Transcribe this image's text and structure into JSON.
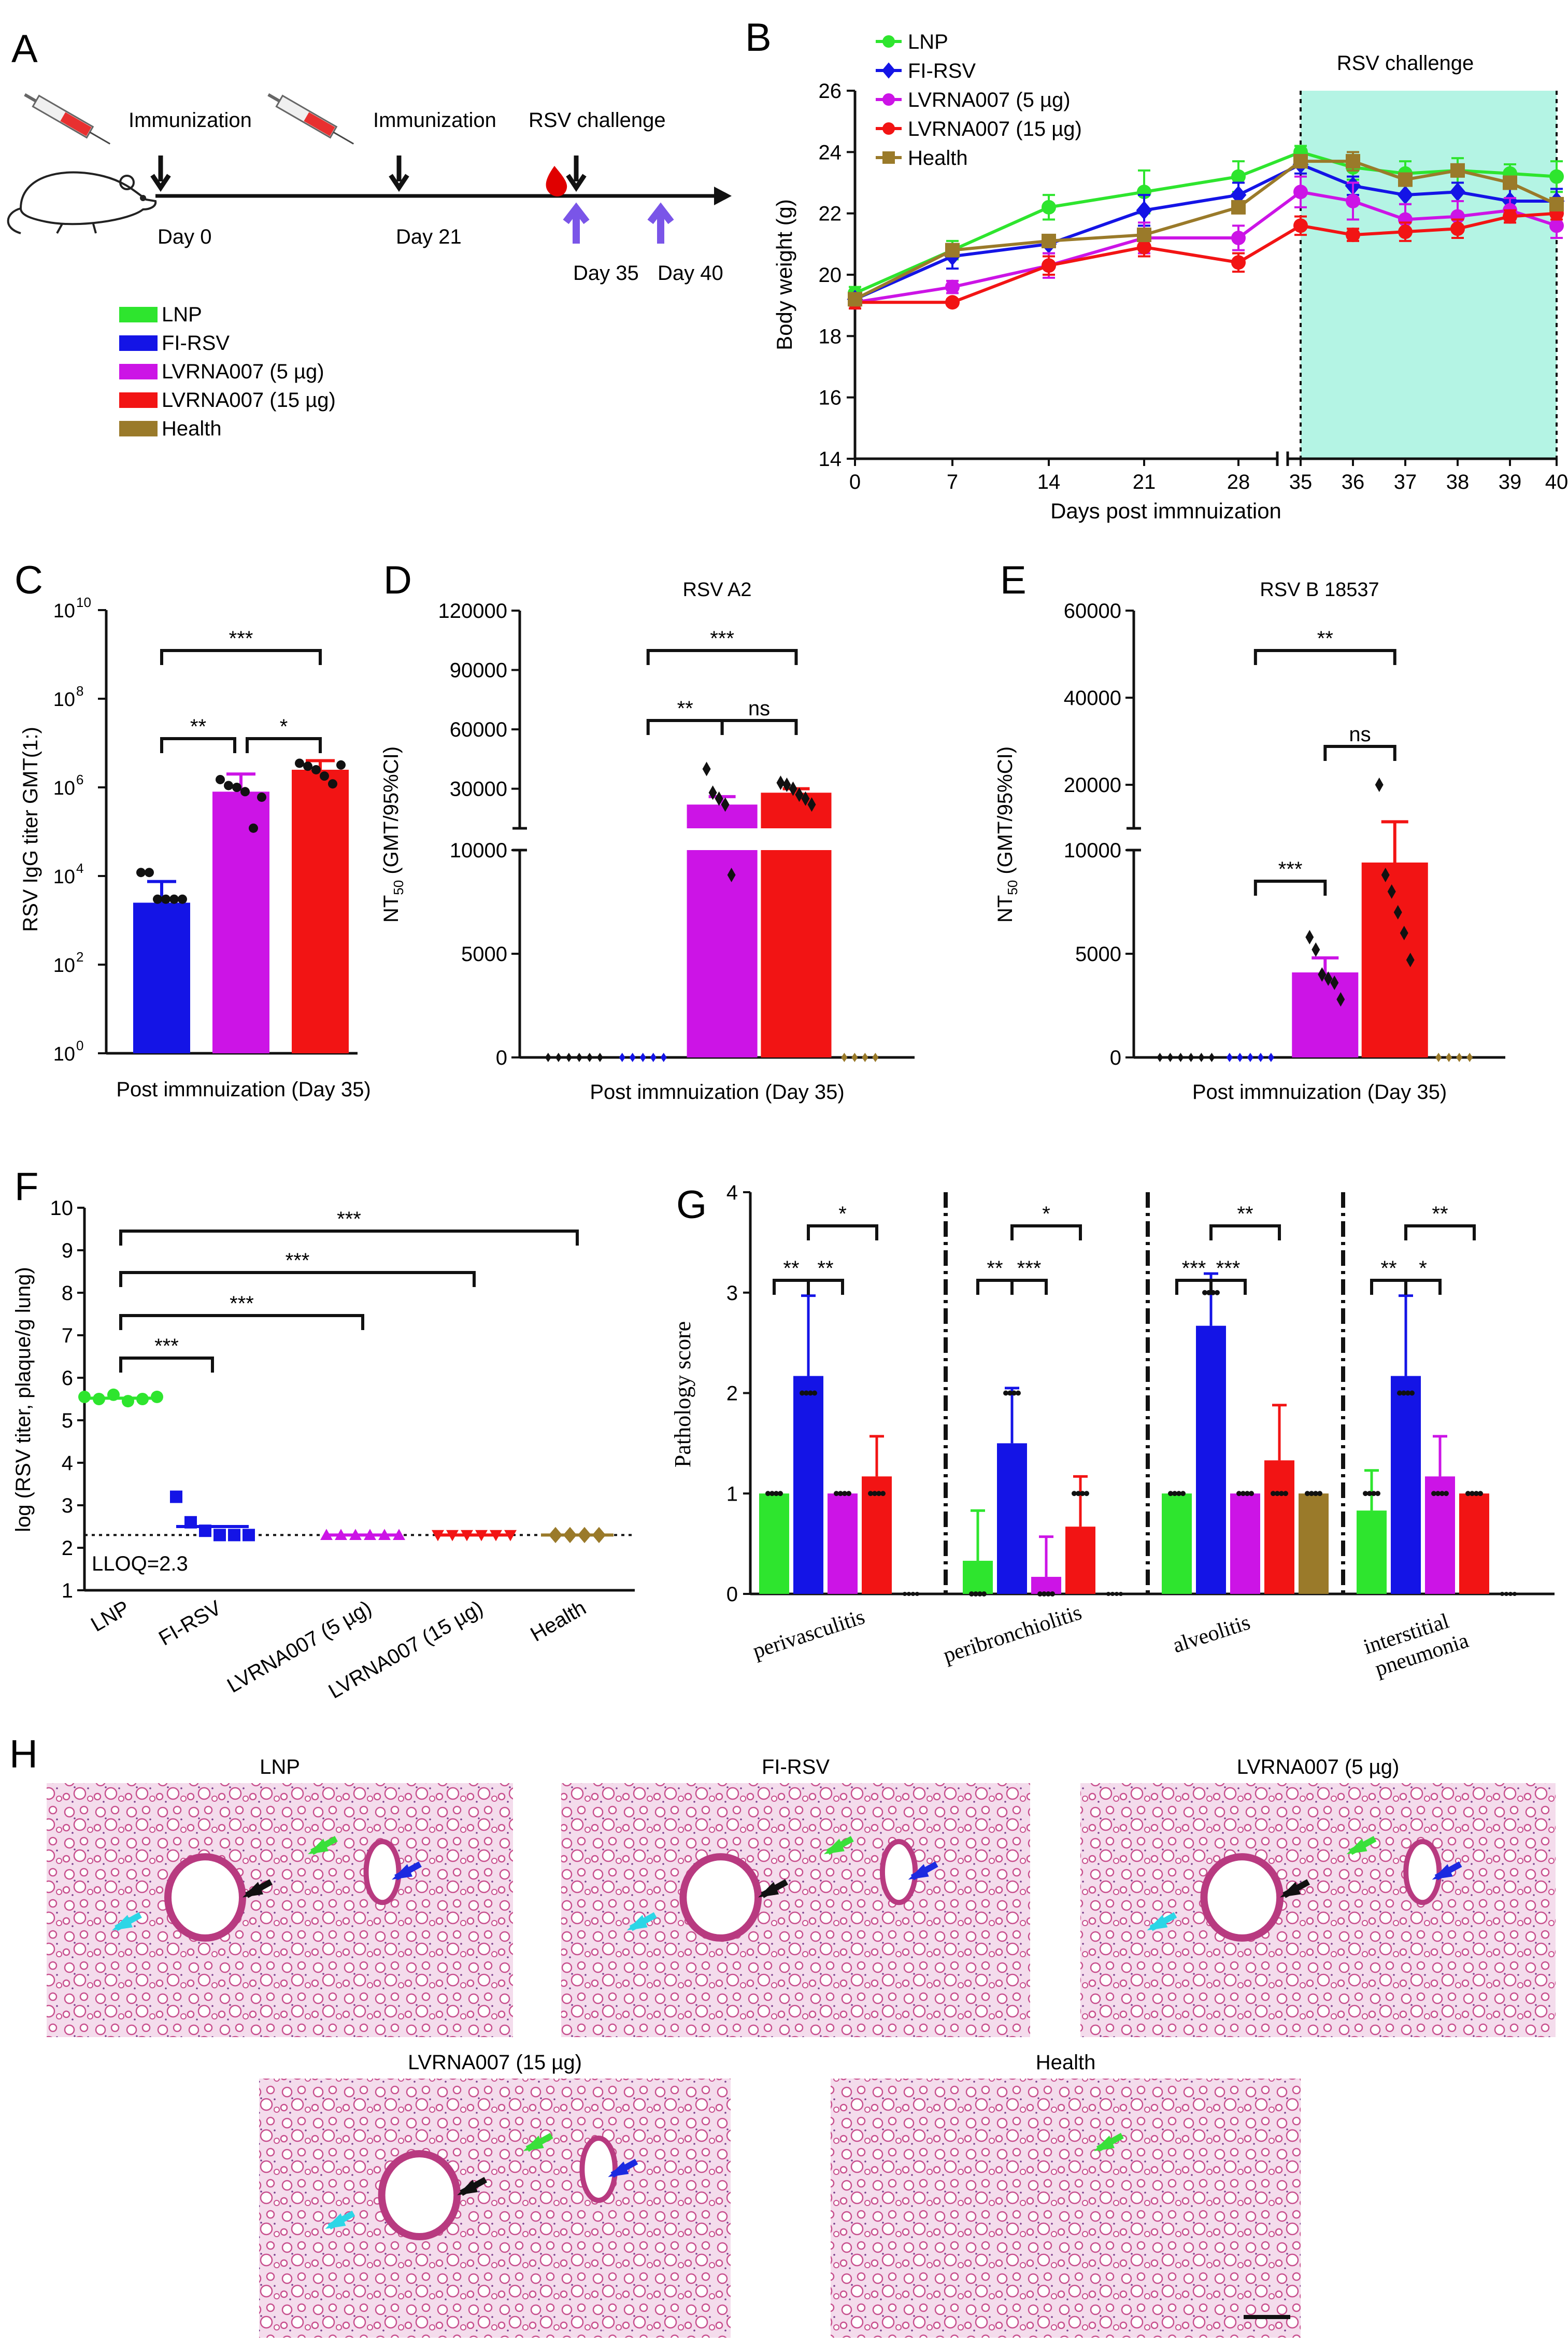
{
  "colors": {
    "LNP": "#2ee52e",
    "FI-RSV": "#1414e6",
    "LVRNA007 (5 µg)": "#cc14e6",
    "LVRNA007 (15 µg)": "#f21414",
    "Health": "#9a7a2a",
    "challenge_band": "#b4f4e4",
    "arrow_black": "#111111",
    "arrow_cyan": "#2cd6e6",
    "arrow_green": "#3ae03a",
    "arrow_blue": "#1c2ae0",
    "timeline_sample_arrow": "#7a55e8",
    "tissue_bg": "#f4dcec",
    "tissue_stain": "#c8508e"
  },
  "panel_letters": {
    "A": "A",
    "B": "B",
    "C": "C",
    "D": "D",
    "E": "E",
    "F": "F",
    "G": "G",
    "H": "H"
  },
  "panel_a": {
    "events": [
      {
        "label": "Immunization",
        "day": "Day 0",
        "icon": "syringe-icon"
      },
      {
        "label": "Immunization",
        "day": "Day 21",
        "icon": "syringe-icon"
      },
      {
        "label": "RSV challenge",
        "day": "Day 35",
        "icon": "blood-drop-icon"
      },
      {
        "label": "",
        "day": "Day 40",
        "icon": ""
      }
    ],
    "legend": [
      "LNP",
      "FI-RSV",
      "LVRNA007 (5 µg)",
      "LVRNA007 (15 µg)",
      "Health"
    ]
  },
  "chart_data": [
    {
      "panel": "B",
      "type": "line",
      "xlabel": "Days post immnuization",
      "ylabel": "Body weight (g)",
      "ylim": [
        14,
        26
      ],
      "yticks": [
        14,
        16,
        18,
        20,
        22,
        24,
        26
      ],
      "x": [
        0,
        7,
        14,
        21,
        28,
        35,
        36,
        37,
        38,
        39,
        40
      ],
      "x_tick_labels": [
        "0",
        "7",
        "14",
        "21",
        "28",
        "35",
        "36",
        "37",
        "38",
        "39",
        "40"
      ],
      "axis_break_between": [
        28,
        35
      ],
      "shaded_region": {
        "from": 35,
        "to": 40,
        "label": "RSV challenge"
      },
      "legend_placement": "top-left",
      "series": [
        {
          "name": "LNP",
          "marker": "circle",
          "values": [
            19.4,
            20.8,
            22.2,
            22.7,
            23.2,
            24.0,
            23.5,
            23.3,
            23.4,
            23.3,
            23.2
          ],
          "errors": [
            0.2,
            0.3,
            0.4,
            0.7,
            0.5,
            0.2,
            0.4,
            0.4,
            0.4,
            0.3,
            0.5
          ]
        },
        {
          "name": "FI-RSV",
          "marker": "diamond",
          "values": [
            19.2,
            20.6,
            21.0,
            22.1,
            22.6,
            23.6,
            22.9,
            22.6,
            22.7,
            22.4,
            22.4
          ],
          "errors": [
            0.2,
            0.4,
            0.3,
            0.5,
            0.4,
            0.3,
            0.3,
            0.3,
            0.3,
            0.4,
            0.4
          ]
        },
        {
          "name": "LVRNA007 (5 µg)",
          "marker": "circle",
          "values": [
            19.1,
            19.6,
            20.3,
            21.2,
            21.2,
            22.7,
            22.4,
            21.8,
            21.9,
            22.1,
            21.6
          ],
          "errors": [
            0.2,
            0.2,
            0.4,
            0.5,
            0.4,
            0.5,
            0.6,
            0.5,
            0.5,
            0.4,
            0.4
          ]
        },
        {
          "name": "LVRNA007 (15 µg)",
          "marker": "circle",
          "values": [
            19.1,
            19.1,
            20.3,
            20.9,
            20.4,
            21.6,
            21.3,
            21.4,
            21.5,
            21.9,
            22.0
          ],
          "errors": [
            0.2,
            0.1,
            0.3,
            0.3,
            0.3,
            0.3,
            0.2,
            0.3,
            0.3,
            0.2,
            0.2
          ]
        },
        {
          "name": "Health",
          "marker": "square",
          "values": [
            19.2,
            20.8,
            21.1,
            21.3,
            22.2,
            23.7,
            23.7,
            23.1,
            23.4,
            23.0,
            22.3
          ],
          "errors": [
            0.2,
            0.2,
            0.2,
            0.2,
            0.2,
            0.2,
            0.3,
            0.2,
            0.2,
            0.2,
            0.2
          ]
        }
      ]
    },
    {
      "panel": "C",
      "type": "bar",
      "xlabel": "Post immnuization (Day 35)",
      "ylabel": "RSV IgG titer GMT(1:)",
      "yscale": "log",
      "ylim": [
        1,
        10000000000
      ],
      "yticks": [
        "10",
        "10",
        "10",
        "10",
        "10",
        "10"
      ],
      "ytick_exponents": [
        "0",
        "2",
        "4",
        "6",
        "8",
        "10"
      ],
      "categories": [
        "FI-RSV",
        "LVRNA007 (5 µg)",
        "LVRNA007 (15 µg)"
      ],
      "values": [
        2500,
        800000,
        2500000
      ],
      "errors_upper": [
        7500,
        2000000,
        4000000
      ],
      "points": [
        [
          12000,
          12000,
          3000,
          3000,
          3000,
          3000
        ],
        [
          1500000,
          1100000,
          1000000,
          800000,
          120000,
          600000
        ],
        [
          3500000,
          3000000,
          2500000,
          1800000,
          1200000,
          3200000
        ]
      ],
      "significance": [
        {
          "from": 0,
          "to": 2,
          "label": "***"
        },
        {
          "from": 0,
          "to": 1,
          "label": "**"
        },
        {
          "from": 1,
          "to": 2,
          "label": "*"
        }
      ]
    },
    {
      "panel": "D",
      "type": "bar",
      "title": "RSV A2",
      "xlabel": "Post immnuization (Day 35)",
      "ylabel": "NT50 (GMT/95%CI)",
      "ylabel_main": "NT",
      "ylabel_sub": "50",
      "ylabel_rest": " (GMT/95%CI)",
      "broken_axis": {
        "lower": [
          0,
          10000
        ],
        "upper": [
          10000,
          120000
        ]
      },
      "yticks": [
        "0",
        "5000",
        "10000",
        "30000",
        "60000",
        "90000",
        "120000"
      ],
      "categories": [
        "LNP",
        "FI-RSV",
        "LVRNA007 (5 µg)",
        "LVRNA007 (15 µg)",
        "Health"
      ],
      "values": [
        0,
        0,
        22000,
        28000,
        0
      ],
      "errors_upper": [
        0,
        0,
        26000,
        30000,
        0
      ],
      "points": [
        [
          0,
          0,
          0,
          0,
          0,
          0
        ],
        [
          0,
          0,
          0,
          0,
          0
        ],
        [
          40000,
          28000,
          25000,
          22000,
          8800
        ],
        [
          33000,
          32000,
          30000,
          27000,
          25000,
          22000
        ],
        [
          0,
          0,
          0,
          0
        ]
      ],
      "significance": [
        {
          "from": 1,
          "to": 3,
          "label": "***"
        },
        {
          "from": 1,
          "to": 2,
          "label": "**"
        },
        {
          "from": 2,
          "to": 3,
          "label": "ns"
        }
      ]
    },
    {
      "panel": "E",
      "type": "bar",
      "title": "RSV B 18537",
      "xlabel": "Post immnuization (Day 35)",
      "ylabel": "NT50 (GMT/95%CI)",
      "ylabel_main": "NT",
      "ylabel_sub": "50",
      "ylabel_rest": " (GMT/95%CI)",
      "broken_axis": {
        "lower": [
          0,
          10000
        ],
        "upper": [
          10000,
          60000
        ]
      },
      "yticks": [
        "0",
        "5000",
        "10000",
        "20000",
        "40000",
        "60000"
      ],
      "categories": [
        "LNP",
        "FI-RSV",
        "LVRNA007 (5 µg)",
        "LVRNA007 (15 µg)",
        "Health"
      ],
      "values": [
        0,
        0,
        4100,
        9400,
        0
      ],
      "errors_upper": [
        0,
        0,
        4800,
        11500,
        0
      ],
      "points": [
        [
          0,
          0,
          0,
          0,
          0,
          0
        ],
        [
          0,
          0,
          0,
          0,
          0
        ],
        [
          5800,
          5200,
          4000,
          3800,
          3600,
          2800
        ],
        [
          20000,
          8800,
          8000,
          7000,
          6000,
          4700
        ],
        [
          0,
          0,
          0,
          0
        ]
      ],
      "significance": [
        {
          "from": 1,
          "to": 3,
          "label": "**"
        },
        {
          "from": 2,
          "to": 3,
          "label": "ns"
        },
        {
          "from": 1,
          "to": 2,
          "label": "***"
        }
      ]
    },
    {
      "panel": "F",
      "type": "scatter",
      "ylabel": "log (RSV titer, plaque/g lung)",
      "ylim": [
        1,
        10
      ],
      "yticks": [
        "1",
        "2",
        "3",
        "4",
        "5",
        "6",
        "7",
        "8",
        "9",
        "10"
      ],
      "categories": [
        "LNP",
        "FI-RSV",
        "LVRNA007 (5 µg)",
        "LVRNA007 (15 µg)",
        "Health"
      ],
      "markers": [
        "circle",
        "square",
        "triangle-up",
        "triangle-down",
        "diamond"
      ],
      "points": [
        [
          5.55,
          5.5,
          5.6,
          5.45,
          5.5,
          5.55
        ],
        [
          3.2,
          2.6,
          2.4,
          2.3,
          2.3,
          2.3
        ],
        [
          2.3,
          2.3,
          2.3,
          2.3,
          2.3,
          2.3
        ],
        [
          2.3,
          2.3,
          2.3,
          2.3,
          2.3,
          2.3
        ],
        [
          2.3,
          2.3,
          2.3,
          2.3
        ]
      ],
      "means": [
        5.52,
        2.5,
        2.3,
        2.3,
        2.3
      ],
      "errors": [
        0.05,
        0.15,
        0.0,
        0.0,
        0.0
      ],
      "lloq": {
        "value": 2.3,
        "label": "LLOQ=2.3"
      },
      "significance": [
        {
          "from": 0,
          "to": 4,
          "label": "***"
        },
        {
          "from": 0,
          "to": 3,
          "label": "***"
        },
        {
          "from": 0,
          "to": 2,
          "label": "***"
        },
        {
          "from": 0,
          "to": 1,
          "label": "***"
        }
      ]
    },
    {
      "panel": "G",
      "type": "bar",
      "ylabel": "Pathology score",
      "ylim": [
        0,
        4
      ],
      "yticks": [
        "0",
        "1",
        "2",
        "3",
        "4"
      ],
      "groups": [
        "perivasculitis",
        "peribronchiolitis",
        "alveolitis",
        "interstitial\npneumonia"
      ],
      "group_labels": [
        [
          "perivasculitis"
        ],
        [
          "peribronchiolitis"
        ],
        [
          "alveolitis"
        ],
        [
          "interstitial",
          "pneumonia"
        ]
      ],
      "series_order": [
        "LNP",
        "FI-RSV",
        "LVRNA007 (5 µg)",
        "LVRNA007 (15 µg)",
        "Health"
      ],
      "values": [
        [
          1.0,
          2.17,
          1.0,
          1.17,
          0.0
        ],
        [
          0.33,
          1.5,
          0.17,
          0.67,
          0.0
        ],
        [
          1.0,
          2.67,
          1.0,
          1.33,
          1.0
        ],
        [
          0.83,
          2.17,
          1.17,
          1.0,
          0.0
        ]
      ],
      "errors": [
        [
          0,
          0.8,
          0,
          0.4,
          0
        ],
        [
          0.5,
          0.55,
          0.4,
          0.5,
          0
        ],
        [
          0,
          0.52,
          0,
          0.55,
          0
        ],
        [
          0.4,
          0.8,
          0.4,
          0,
          0
        ]
      ],
      "significance": [
        [
          {
            "from": 0,
            "to": 1,
            "label": "**"
          },
          {
            "from": 1,
            "to": 2,
            "label": "**"
          },
          {
            "from": 1,
            "to": 3,
            "label": "*"
          }
        ],
        [
          {
            "from": 0,
            "to": 1,
            "label": "**"
          },
          {
            "from": 1,
            "to": 2,
            "label": "***"
          },
          {
            "from": 1,
            "to": 3,
            "label": "*"
          }
        ],
        [
          {
            "from": 0,
            "to": 1,
            "label": "***"
          },
          {
            "from": 1,
            "to": 2,
            "label": "***"
          },
          {
            "from": 1,
            "to": 3,
            "label": "**"
          }
        ],
        [
          {
            "from": 0,
            "to": 1,
            "label": "**"
          },
          {
            "from": 1,
            "to": 2,
            "label": "*"
          },
          {
            "from": 1,
            "to": 3,
            "label": "**"
          }
        ]
      ]
    }
  ],
  "panel_h": {
    "images": [
      {
        "title": "LNP",
        "arrows": [
          "cyan",
          "black",
          "green",
          "blue"
        ]
      },
      {
        "title": "FI-RSV",
        "arrows": [
          "cyan",
          "black",
          "green",
          "blue"
        ]
      },
      {
        "title": "LVRNA007 (5 µg)",
        "arrows": [
          "cyan",
          "black",
          "green",
          "blue"
        ]
      },
      {
        "title": "LVRNA007 (15 µg)",
        "arrows": [
          "cyan",
          "black",
          "green",
          "blue"
        ]
      },
      {
        "title": "Health",
        "arrows": [
          "green"
        ]
      }
    ]
  }
}
